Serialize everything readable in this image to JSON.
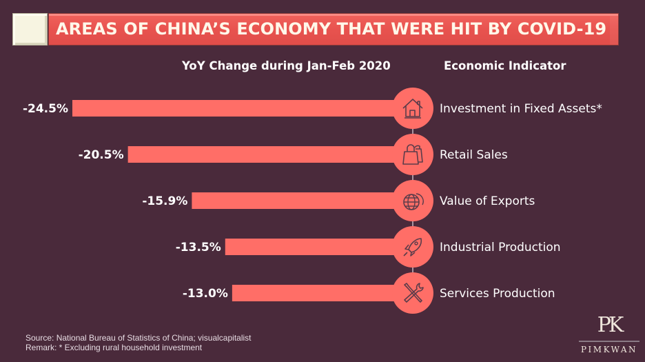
{
  "title": "AREAS OF CHINA’S ECONOMY THAT WERE HIT BY COVID-19",
  "column_headers": {
    "left": "YoY Change during Jan-Feb 2020",
    "right": "Economic Indicator"
  },
  "colors": {
    "background": "#4a2a3b",
    "bar": "#ff6e67",
    "banner": "#e8534f",
    "icon_stroke": "#5a3c4a",
    "connector": "#c9b8c2"
  },
  "chart_data": {
    "type": "bar",
    "orientation": "horizontal",
    "title": "AREAS OF CHINA’S ECONOMY THAT WERE HIT BY COVID-19",
    "xlabel": "YoY Change during Jan-Feb 2020",
    "ylabel": "Economic Indicator",
    "categories": [
      "Investment in Fixed Assets*",
      "Retail Sales",
      "Value of Exports",
      "Industrial Production",
      "Services Production"
    ],
    "values": [
      -24.5,
      -20.5,
      -15.9,
      -13.5,
      -13.0
    ],
    "value_labels": [
      "-24.5%",
      "-20.5%",
      "-15.9%",
      "-13.5%",
      "-13.0%"
    ],
    "icons": [
      "house-icon",
      "shopping-bags-icon",
      "globe-icon",
      "rocket-icon",
      "tools-icon"
    ],
    "unit": "%",
    "grid": false,
    "legend": "none"
  },
  "footer": {
    "source": "Source: National Bureau of Statistics of China; visualcapitalist",
    "remark": "Remark: * Excluding rural household investment"
  },
  "logo": {
    "mark": "PK",
    "name": "PIMKWAN"
  }
}
